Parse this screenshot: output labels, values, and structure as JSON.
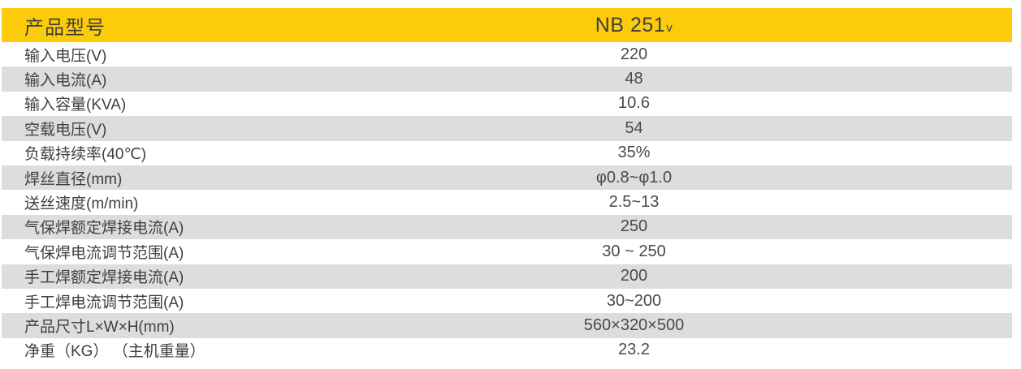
{
  "table": {
    "header": {
      "label": "产品型号",
      "model": "NB 251",
      "model_suffix": "v"
    },
    "rows": [
      {
        "label": "输入电压(V)",
        "value": "220"
      },
      {
        "label": "输入电流(A)",
        "value": "48"
      },
      {
        "label": "输入容量(KVA)",
        "value": "10.6"
      },
      {
        "label": "空载电压(V)",
        "value": "54"
      },
      {
        "label": "负载持续率(40℃)",
        "value": "35%"
      },
      {
        "label": "焊丝直径(mm)",
        "value": "φ0.8~φ1.0"
      },
      {
        "label": "送丝速度(m/min)",
        "value": "2.5~13"
      },
      {
        "label": "气保焊额定焊接电流(A)",
        "value": "250"
      },
      {
        "label": "气保焊电流调节范围(A)",
        "value": "30 ~ 250"
      },
      {
        "label": "手工焊额定焊接电流(A)",
        "value": "200"
      },
      {
        "label": "手工焊电流调节范围(A)",
        "value": "30~200"
      },
      {
        "label": "产品尺寸L×W×H(mm)",
        "value": "560×320×500"
      },
      {
        "label": "净重（KG） （主机重量）",
        "value": "23.2"
      }
    ]
  },
  "colors": {
    "header_bg": "#fccc0a",
    "row_alt_bg": "#dcddde",
    "text": "#3f3f3f",
    "value_text": "#4a4a4a",
    "page_bg": "#ffffff"
  }
}
